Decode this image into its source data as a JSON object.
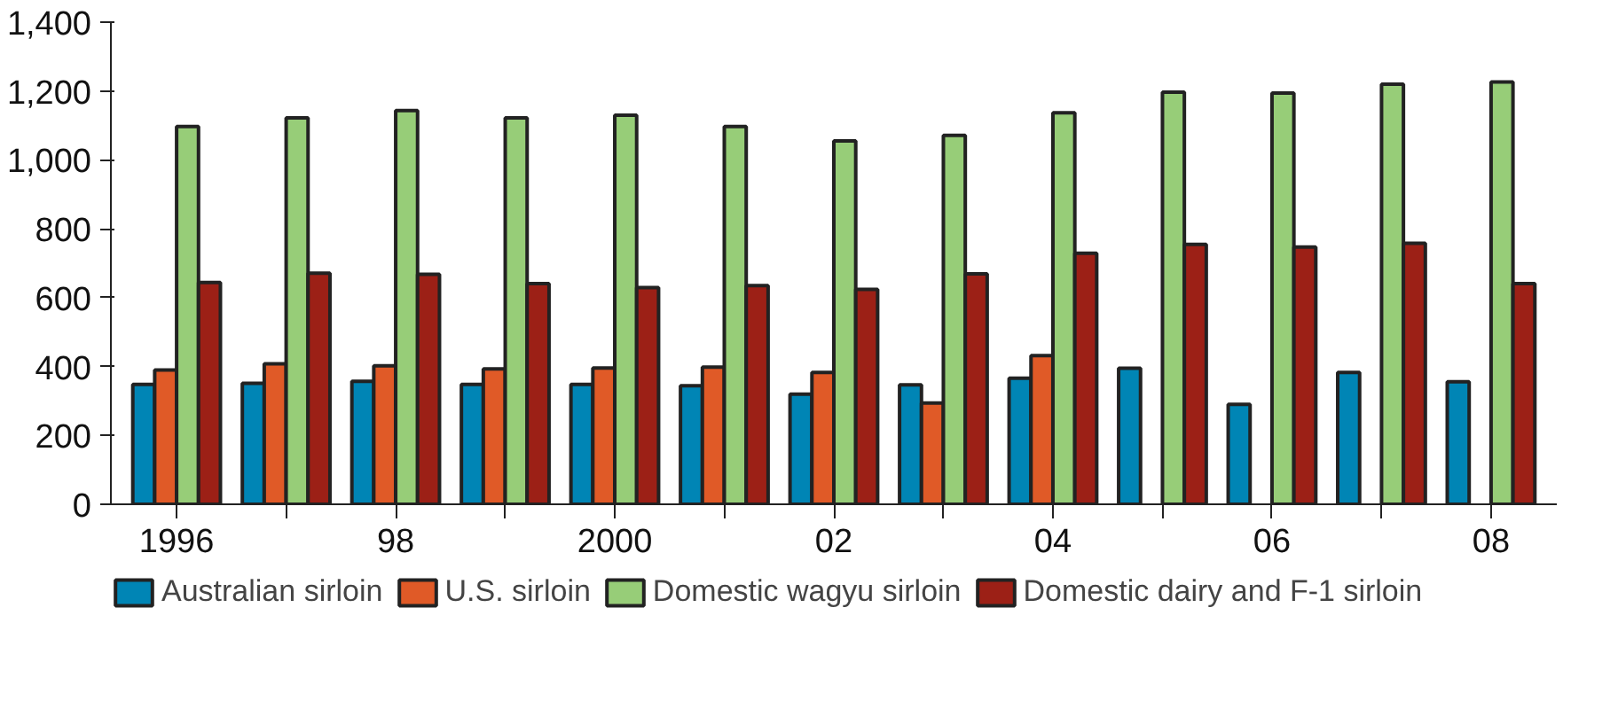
{
  "chart_data": {
    "type": "bar",
    "categories": [
      "1996",
      null,
      "98",
      null,
      "2000",
      null,
      "02",
      null,
      "04",
      null,
      "06",
      null,
      "08"
    ],
    "series": [
      {
        "name": "Australian sirloin",
        "color": "#0085b5",
        "values": [
          348,
          351,
          357,
          348,
          348,
          344,
          320,
          347,
          366,
          395,
          290,
          383,
          356
        ]
      },
      {
        "name": "U.S. sirloin",
        "color": "#e05a27",
        "values": [
          390,
          408,
          402,
          393,
          396,
          398,
          383,
          294,
          432,
          null,
          null,
          null,
          null
        ]
      },
      {
        "name": "Domestic wagyu sirloin",
        "color": "#97cd78",
        "values": [
          1097,
          1122,
          1143,
          1122,
          1130,
          1097,
          1055,
          1071,
          1137,
          1197,
          1194,
          1220,
          1226
        ]
      },
      {
        "name": "Domestic dairy and F-1 sirloin",
        "color": "#9c2016",
        "values": [
          644,
          671,
          668,
          641,
          629,
          635,
          624,
          669,
          729,
          755,
          747,
          758,
          641
        ]
      }
    ],
    "ylim": [
      0,
      1400
    ],
    "yticks": [
      0,
      200,
      400,
      600,
      800,
      {
        "value": 1000,
        "label": "1,000"
      },
      {
        "value": 1200,
        "label": "1,200"
      },
      {
        "value": 1400,
        "label": "1,400"
      }
    ],
    "grid": false,
    "legend": "bottom"
  }
}
